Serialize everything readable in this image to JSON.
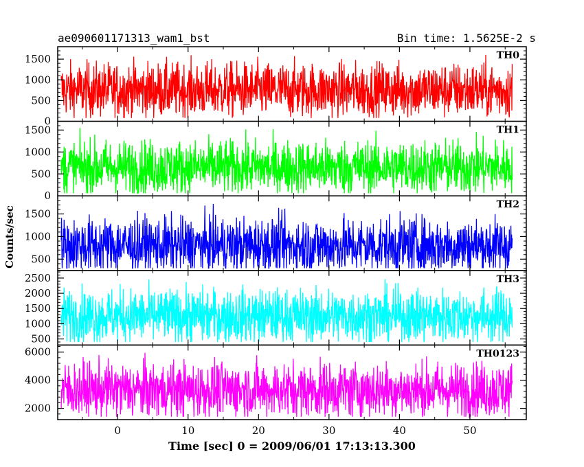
{
  "chart_data": {
    "type": "line",
    "title": "ae090601171313_wam1_bst",
    "subtitle": "Bin time: 1.5625E-2 s",
    "xlabel": "Time [sec] 0 = 2009/06/01 17:13:13.300",
    "ylabel": "Counts/sec",
    "xlim": [
      -8.5,
      58
    ],
    "x_range_data": [
      -8,
      56
    ],
    "x_ticks": [
      0,
      10,
      20,
      30,
      40,
      50
    ],
    "x_tick_labels": [
      "0",
      "10",
      "20",
      "30",
      "40",
      "50"
    ],
    "grid": false,
    "panels": [
      {
        "name": "TH0",
        "color": "#ff0000",
        "ylim": [
          0,
          1800
        ],
        "y_ticks": [
          0,
          500,
          1000,
          1500
        ],
        "y_tick_labels": [
          "0",
          "500",
          "1000",
          "1500"
        ],
        "mean": 750,
        "min": 80,
        "max": 1780
      },
      {
        "name": "TH1",
        "color": "#00ff00",
        "ylim": [
          0,
          1700
        ],
        "y_ticks": [
          0,
          500,
          1000,
          1500
        ],
        "y_tick_labels": [
          "0",
          "500",
          "1000",
          "1500"
        ],
        "mean": 650,
        "min": 60,
        "max": 1650
      },
      {
        "name": "TH2",
        "color": "#0000ff",
        "ylim": [
          250,
          1900
        ],
        "y_ticks": [
          500,
          1000,
          1500
        ],
        "y_tick_labels": [
          "500",
          "1000",
          "1500"
        ],
        "mean": 800,
        "min": 300,
        "max": 1900
      },
      {
        "name": "TH3",
        "color": "#00ffff",
        "ylim": [
          300,
          2750
        ],
        "y_ticks": [
          500,
          1000,
          1500,
          2000,
          2500
        ],
        "y_tick_labels": [
          "500",
          "1000",
          "1500",
          "2000",
          "2500"
        ],
        "mean": 1250,
        "min": 400,
        "max": 2700
      },
      {
        "name": "TH0123",
        "color": "#ff00ff",
        "ylim": [
          1200,
          6500
        ],
        "y_ticks": [
          2000,
          4000,
          6000
        ],
        "y_tick_labels": [
          "2000",
          "4000",
          "6000"
        ],
        "mean": 3300,
        "min": 1400,
        "max": 6500
      }
    ]
  }
}
